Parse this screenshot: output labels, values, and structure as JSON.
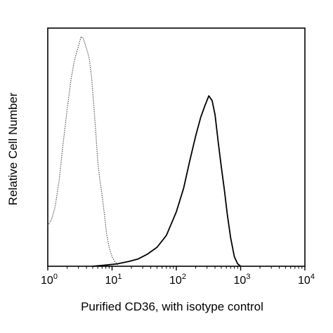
{
  "chart_data": {
    "type": "line",
    "title": "",
    "xlabel": "Purified CD36, with isotype control",
    "ylabel": "Relative Cell Number",
    "xscale": "log",
    "xlim": [
      1,
      10000
    ],
    "ylim": [
      0,
      1
    ],
    "grid": false,
    "legend": "none",
    "x_ticks": [
      {
        "value": 1,
        "base": "10",
        "exp": "0"
      },
      {
        "value": 10,
        "base": "10",
        "exp": "1"
      },
      {
        "value": 100,
        "base": "10",
        "exp": "2"
      },
      {
        "value": 1000,
        "base": "10",
        "exp": "3"
      },
      {
        "value": 10000,
        "base": "10",
        "exp": "4"
      }
    ],
    "series": [
      {
        "style": "dotted",
        "color": "#555555",
        "x": [
          1.0,
          1.15,
          1.3,
          1.5,
          1.7,
          2.0,
          2.3,
          2.6,
          3.0,
          3.3,
          3.6,
          4.0,
          4.4,
          4.8,
          5.2,
          5.6,
          6.0,
          6.5,
          7.0,
          7.6,
          8.2,
          9.0,
          10.0,
          11.0,
          12.0,
          13.0
        ],
        "y": [
          0.17,
          0.2,
          0.25,
          0.36,
          0.5,
          0.66,
          0.79,
          0.87,
          0.93,
          0.97,
          0.96,
          0.92,
          0.88,
          0.8,
          0.68,
          0.56,
          0.44,
          0.36,
          0.3,
          0.22,
          0.14,
          0.08,
          0.04,
          0.02,
          0.01,
          0.0
        ]
      },
      {
        "style": "solid",
        "color": "#000000",
        "x": [
          5.0,
          8.0,
          12.0,
          18.0,
          25.0,
          35.0,
          50.0,
          70.0,
          100.0,
          130.0,
          160.0,
          200.0,
          240.0,
          280.0,
          320.0,
          360.0,
          400.0,
          450.0,
          500.0,
          560.0,
          620.0,
          700.0,
          800.0,
          900.0,
          1000.0
        ],
        "y": [
          0.0,
          0.005,
          0.01,
          0.02,
          0.03,
          0.05,
          0.08,
          0.13,
          0.23,
          0.33,
          0.44,
          0.55,
          0.63,
          0.68,
          0.72,
          0.7,
          0.64,
          0.52,
          0.42,
          0.32,
          0.22,
          0.12,
          0.04,
          0.01,
          0.0
        ]
      }
    ]
  }
}
